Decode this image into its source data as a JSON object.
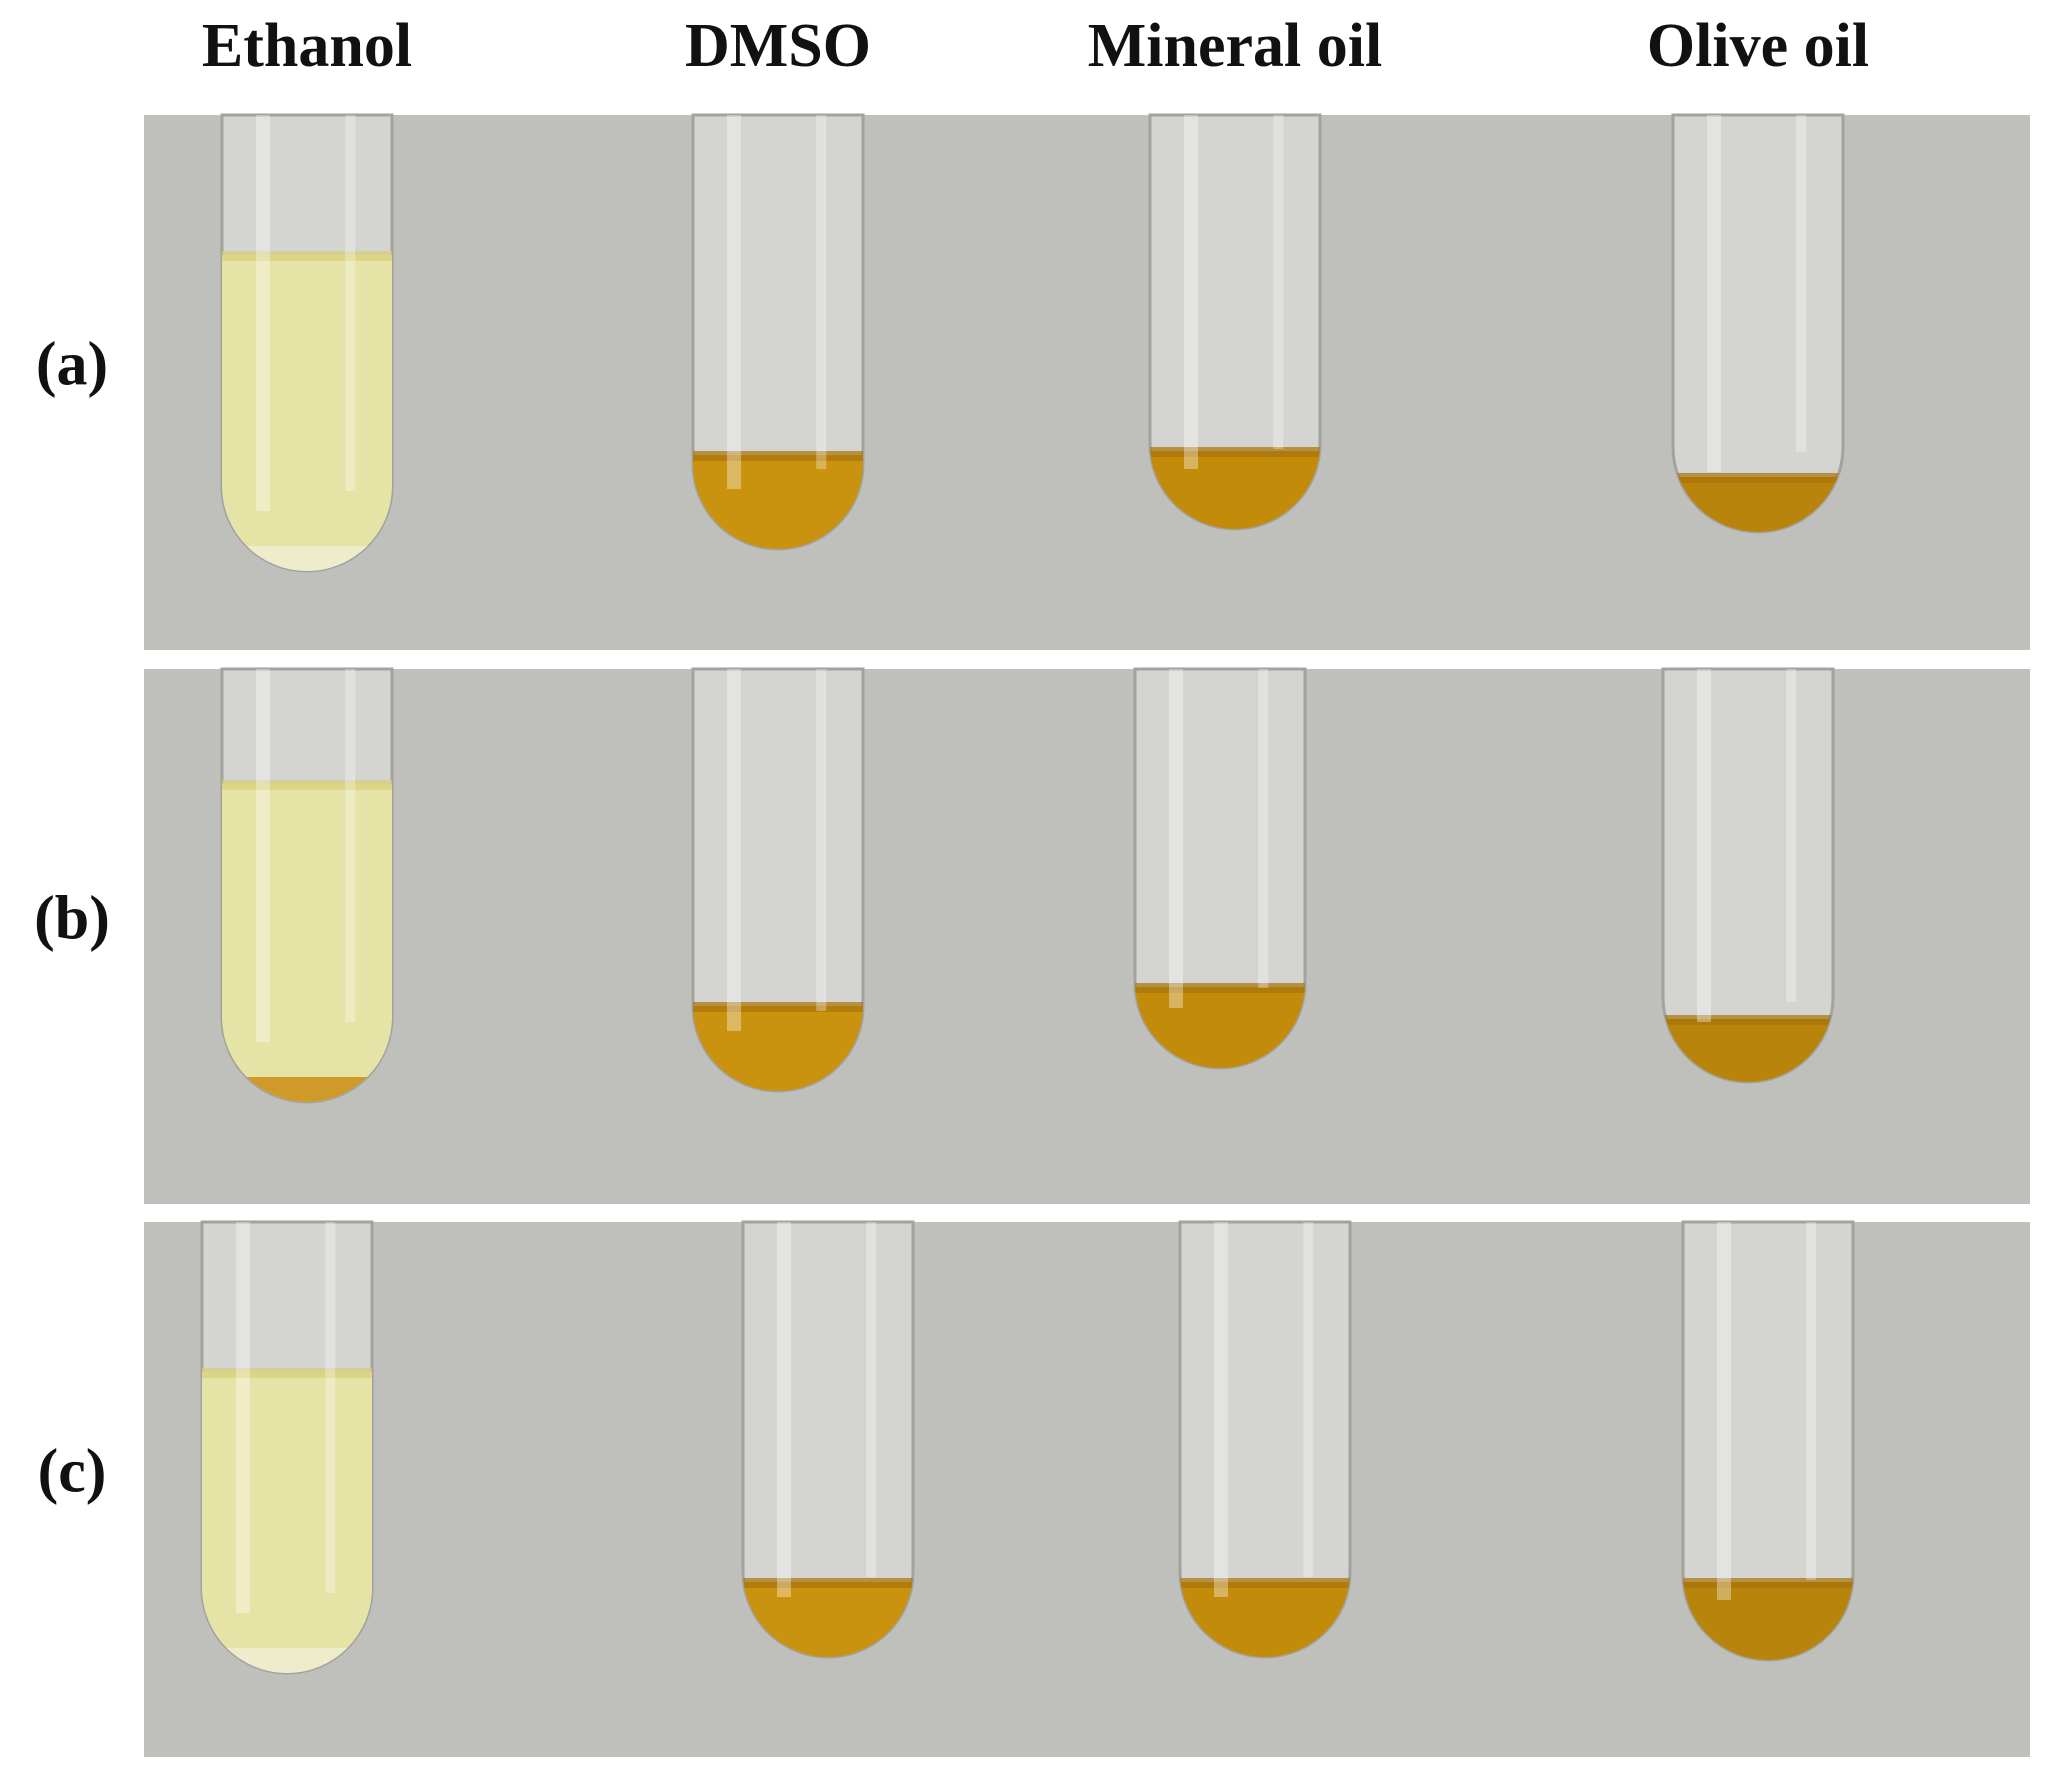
{
  "columns": [
    "Ethanol",
    "DMSO",
    "Mineral oil",
    "Olive oil"
  ],
  "rows": [
    "(a)",
    "(b)",
    "(c)"
  ]
}
